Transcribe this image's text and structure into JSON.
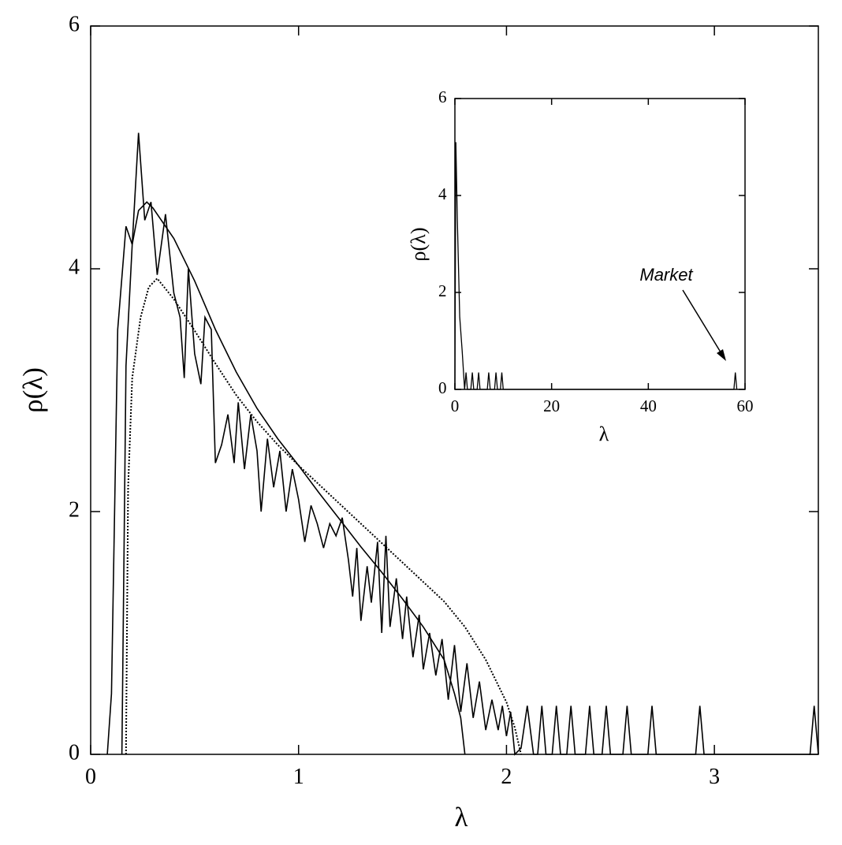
{
  "chart_data": [
    {
      "type": "line",
      "xlabel": "λ",
      "ylabel": "ρ(λ)",
      "xlim": [
        0,
        3.5
      ],
      "ylim": [
        0,
        6
      ],
      "xticks": [
        0,
        1,
        2,
        3
      ],
      "yticks": [
        0,
        2,
        4,
        6
      ],
      "series": [
        {
          "color": "#000000",
          "style": "solid",
          "x": [
            0.08,
            0.1,
            0.13,
            0.17,
            0.2,
            0.23,
            0.26,
            0.29,
            0.32,
            0.36,
            0.4,
            0.43,
            0.45,
            0.47,
            0.5,
            0.53,
            0.55,
            0.58,
            0.6,
            0.63,
            0.66,
            0.69,
            0.71,
            0.74,
            0.77,
            0.8,
            0.82,
            0.85,
            0.88,
            0.91,
            0.94,
            0.97,
            1.0,
            1.03,
            1.06,
            1.09,
            1.12,
            1.15,
            1.18,
            1.21,
            1.24,
            1.26,
            1.28,
            1.3,
            1.33,
            1.35,
            1.38,
            1.4,
            1.42,
            1.44,
            1.47,
            1.5,
            1.52,
            1.55,
            1.58,
            1.6,
            1.63,
            1.66,
            1.69,
            1.72,
            1.75,
            1.78,
            1.81,
            1.84,
            1.87,
            1.9,
            1.93,
            1.96,
            1.98,
            2.0,
            2.02,
            2.04,
            2.07,
            2.1,
            2.13,
            2.15,
            2.17,
            2.19,
            2.22,
            2.24,
            2.26,
            2.29,
            2.31,
            2.33,
            2.38,
            2.4,
            2.42,
            2.46,
            2.48,
            2.5,
            2.56,
            2.58,
            2.6,
            2.68,
            2.7,
            2.72,
            2.91,
            2.93,
            2.95,
            3.46,
            3.48,
            3.5
          ],
          "values": [
            0,
            0.5,
            3.5,
            4.35,
            4.2,
            5.12,
            4.4,
            4.55,
            3.95,
            4.45,
            3.8,
            3.6,
            3.1,
            4.0,
            3.3,
            3.05,
            3.6,
            3.5,
            2.4,
            2.55,
            2.8,
            2.4,
            2.9,
            2.35,
            2.8,
            2.5,
            2.0,
            2.6,
            2.2,
            2.5,
            2.0,
            2.35,
            2.1,
            1.75,
            2.05,
            1.9,
            1.7,
            1.9,
            1.8,
            1.95,
            1.6,
            1.3,
            1.7,
            1.1,
            1.55,
            1.25,
            1.75,
            1.0,
            1.8,
            1.05,
            1.45,
            0.95,
            1.3,
            0.8,
            1.15,
            0.7,
            1.0,
            0.65,
            0.95,
            0.45,
            0.9,
            0.35,
            0.75,
            0.3,
            0.6,
            0.2,
            0.45,
            0.2,
            0.4,
            0.15,
            0.35,
            0,
            0.05,
            0.4,
            0,
            0,
            0.4,
            0,
            0,
            0.4,
            0,
            0,
            0.4,
            0,
            0,
            0.4,
            0,
            0,
            0.4,
            0,
            0,
            0.4,
            0,
            0,
            0.4,
            0,
            0,
            0.4,
            0,
            0,
            0.4,
            0
          ]
        },
        {
          "color": "#000000",
          "style": "solid",
          "x": [
            0.15,
            0.17,
            0.2,
            0.23,
            0.27,
            0.3,
            0.4,
            0.5,
            0.6,
            0.7,
            0.8,
            0.9,
            1.0,
            1.1,
            1.2,
            1.3,
            1.4,
            1.5,
            1.6,
            1.7,
            1.75,
            1.78,
            1.8
          ],
          "values": [
            0,
            3.2,
            4.2,
            4.48,
            4.55,
            4.5,
            4.25,
            3.9,
            3.5,
            3.15,
            2.85,
            2.6,
            2.38,
            2.15,
            1.93,
            1.71,
            1.5,
            1.28,
            1.05,
            0.78,
            0.5,
            0.3,
            0
          ]
        },
        {
          "color": "#000000",
          "style": "dotted",
          "x": [
            0.17,
            0.18,
            0.2,
            0.24,
            0.28,
            0.32,
            0.4,
            0.5,
            0.6,
            0.7,
            0.8,
            0.9,
            1.0,
            1.1,
            1.2,
            1.3,
            1.4,
            1.5,
            1.6,
            1.7,
            1.8,
            1.9,
            2.0,
            2.04,
            2.07
          ],
          "values": [
            0,
            2.2,
            3.1,
            3.6,
            3.85,
            3.92,
            3.75,
            3.49,
            3.22,
            2.96,
            2.74,
            2.55,
            2.38,
            2.22,
            2.06,
            1.9,
            1.74,
            1.58,
            1.42,
            1.26,
            1.05,
            0.78,
            0.43,
            0.22,
            0
          ]
        }
      ]
    },
    {
      "type": "line",
      "xlabel": "λ",
      "ylabel": "ρ(λ)",
      "annotation": "Market",
      "xlim": [
        0,
        60
      ],
      "ylim": [
        0,
        6
      ],
      "xticks": [
        0,
        20,
        40,
        60
      ],
      "yticks": [
        0,
        2,
        4,
        6
      ],
      "series": [
        {
          "color": "#000000",
          "style": "solid",
          "x": [
            0,
            0.2,
            0.5,
            1,
            1.5,
            2,
            2.3,
            2.6,
            3.3,
            3.6,
            3.9,
            4.6,
            4.9,
            5.2,
            6.7,
            7,
            7.3,
            8.2,
            8.5,
            8.8,
            9.4,
            9.7,
            10,
            57.7,
            58,
            58.3
          ],
          "values": [
            0,
            5.1,
            3.5,
            1.5,
            0.8,
            0,
            0.35,
            0,
            0,
            0.35,
            0,
            0,
            0.35,
            0,
            0,
            0.35,
            0,
            0,
            0.35,
            0,
            0,
            0.35,
            0,
            0,
            0.35,
            0
          ]
        }
      ]
    }
  ]
}
